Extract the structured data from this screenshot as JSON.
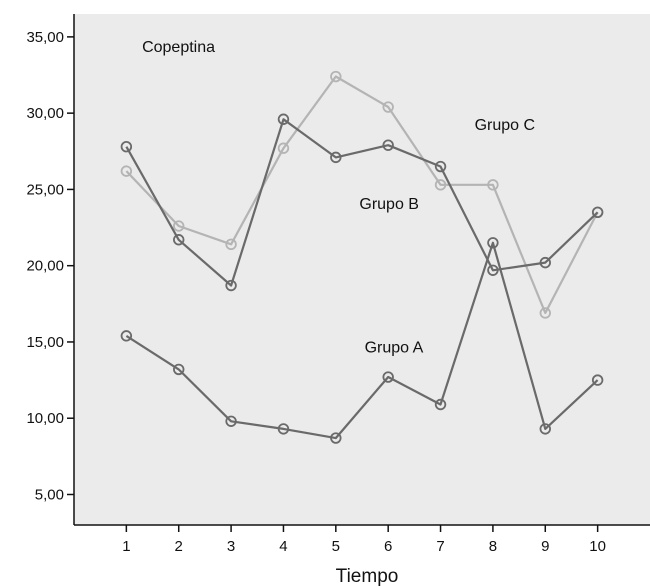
{
  "chart_data": {
    "type": "line",
    "xlabel": "Tiempo",
    "ylabel": "",
    "x": [
      1,
      2,
      3,
      4,
      5,
      6,
      7,
      8,
      9,
      10
    ],
    "xlim": [
      0,
      11
    ],
    "ylim": [
      3,
      36.5
    ],
    "yticks": [
      "5,00",
      "10,00",
      "15,00",
      "20,00",
      "25,00",
      "30,00",
      "35,00"
    ],
    "ytick_values": [
      5,
      10,
      15,
      20,
      25,
      30,
      35
    ],
    "xticks": [
      "1",
      "2",
      "3",
      "4",
      "5",
      "6",
      "7",
      "8",
      "9",
      "10"
    ],
    "grid": false,
    "series": [
      {
        "name": "Grupo C",
        "color": "#b4b4b4",
        "values": [
          26.2,
          22.6,
          21.4,
          27.7,
          32.4,
          30.4,
          25.3,
          25.3,
          16.9,
          23.5
        ]
      },
      {
        "name": "Grupo B",
        "color": "#6a6a6a",
        "values": [
          27.8,
          21.7,
          18.7,
          29.6,
          27.1,
          27.9,
          26.5,
          19.7,
          20.2,
          23.5
        ]
      },
      {
        "name": "Grupo A",
        "color": "#6a6a6a",
        "values": [
          15.4,
          13.2,
          9.8,
          9.3,
          8.7,
          12.7,
          10.9,
          21.5,
          9.3,
          12.5
        ]
      }
    ],
    "annotations": [
      {
        "text": "Copeptina",
        "x": 1.3,
        "y": 34.0
      },
      {
        "text": "Grupo C",
        "x": 7.65,
        "y": 28.9
      },
      {
        "text": "Grupo B",
        "x": 5.45,
        "y": 23.7
      },
      {
        "text": "Grupo A",
        "x": 5.55,
        "y": 14.3
      }
    ]
  }
}
